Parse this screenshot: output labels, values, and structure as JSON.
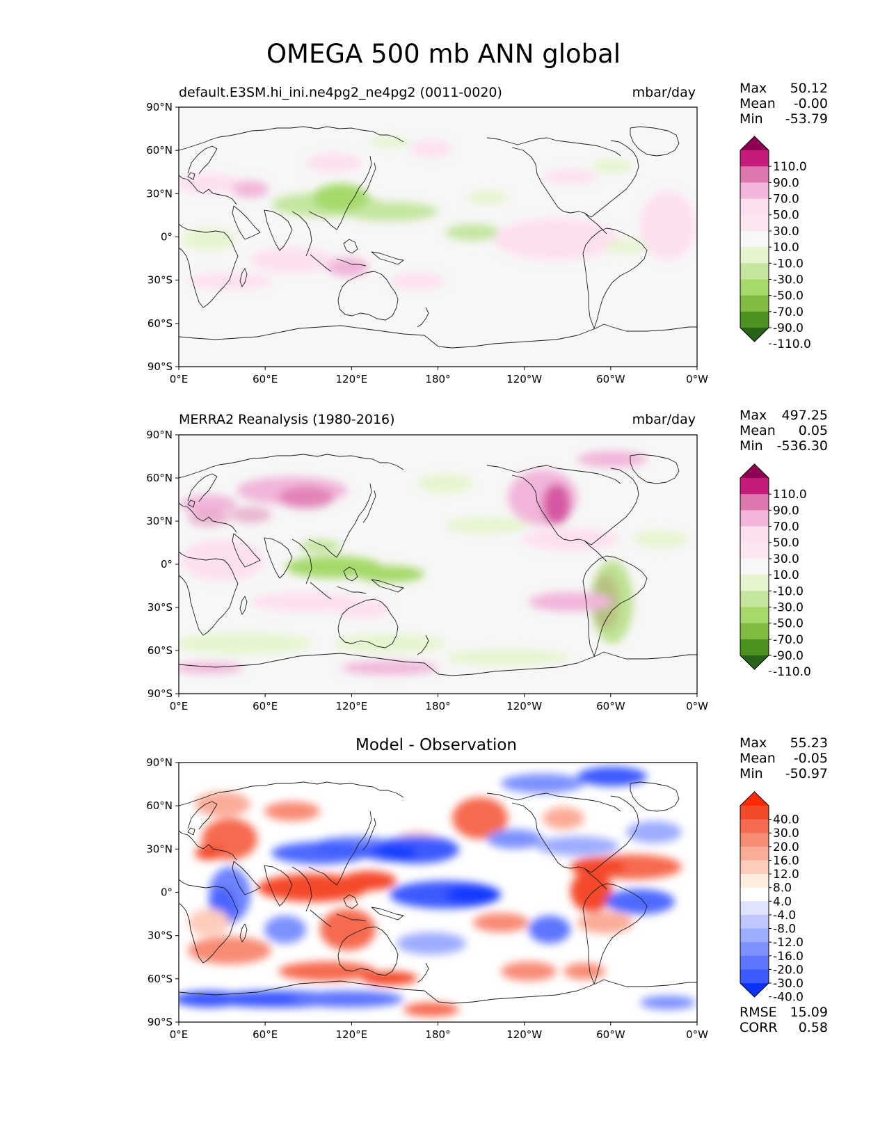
{
  "figure": {
    "title": "OMEGA 500 mb ANN global"
  },
  "axes": {
    "lat_ticks": [
      "90°N",
      "60°N",
      "30°N",
      "0°",
      "30°S",
      "60°S",
      "90°S"
    ],
    "lon_ticks": [
      "0°E",
      "60°E",
      "120°E",
      "180°",
      "120°W",
      "60°W",
      "0°W"
    ]
  },
  "colors": {
    "background_ocean": "#f7f7f7",
    "coastline": "#1a1a1a",
    "diff_background": "#ffffff"
  },
  "panels": [
    {
      "id": "model",
      "title": "default.E3SM.hi_ini.ne4pg2_ne4pg2 (0011-0020)",
      "units": "mbar/day",
      "stats": {
        "max_label": "Max",
        "max": "50.12",
        "mean_label": "Mean",
        "mean": "-0.00",
        "min_label": "Min",
        "min": "-53.79"
      },
      "colorbar_labels": [
        "110.0",
        "90.0",
        "70.0",
        "50.0",
        "30.0",
        "10.0",
        "-10.0",
        "-30.0",
        "-50.0",
        "-70.0",
        "-90.0",
        "-110.0"
      ],
      "colorbar_colors": [
        "#8e0152",
        "#c51b7d",
        "#de77ae",
        "#f1b6da",
        "#fde0ef",
        "#fbe6f1",
        "#f7f7f7",
        "#e6f5d0",
        "#c5e6a0",
        "#a6d96a",
        "#7fbc41",
        "#4d9221",
        "#276419"
      ]
    },
    {
      "id": "obs",
      "title": "MERRA2 Reanalysis (1980-2016)",
      "units": "mbar/day",
      "stats": {
        "max_label": "Max",
        "max": "497.25",
        "mean_label": "Mean",
        "mean": "0.05",
        "min_label": "Min",
        "min": "-536.30"
      },
      "colorbar_labels": [
        "110.0",
        "90.0",
        "70.0",
        "50.0",
        "30.0",
        "10.0",
        "-10.0",
        "-30.0",
        "-50.0",
        "-70.0",
        "-90.0",
        "-110.0"
      ],
      "colorbar_colors": [
        "#8e0152",
        "#c51b7d",
        "#de77ae",
        "#f1b6da",
        "#fde0ef",
        "#fbe6f1",
        "#f7f7f7",
        "#e6f5d0",
        "#c5e6a0",
        "#a6d96a",
        "#7fbc41",
        "#4d9221",
        "#276419"
      ]
    },
    {
      "id": "diff",
      "title": "Model - Observation",
      "units": "",
      "stats": {
        "max_label": "Max",
        "max": "55.23",
        "mean_label": "Mean",
        "mean": "-0.05",
        "min_label": "Min",
        "min": "-50.97",
        "rmse_label": "RMSE",
        "rmse": "15.09",
        "corr_label": "CORR",
        "corr": "0.58"
      },
      "colorbar_labels": [
        "40.0",
        "30.0",
        "20.0",
        "16.0",
        "12.0",
        "8.0",
        "4.0",
        "-4.0",
        "-8.0",
        "-12.0",
        "-16.0",
        "-20.0",
        "-30.0",
        "-40.0"
      ],
      "colorbar_colors": [
        "#ff2a00",
        "#f44a2c",
        "#f66a50",
        "#f88b74",
        "#fbac98",
        "#fdcdbc",
        "#ffeee0",
        "#ffffff",
        "#dfe3ff",
        "#bec8ff",
        "#9eacff",
        "#7d91ff",
        "#5d75ff",
        "#3c5aff",
        "#0a32ff"
      ]
    }
  ]
}
